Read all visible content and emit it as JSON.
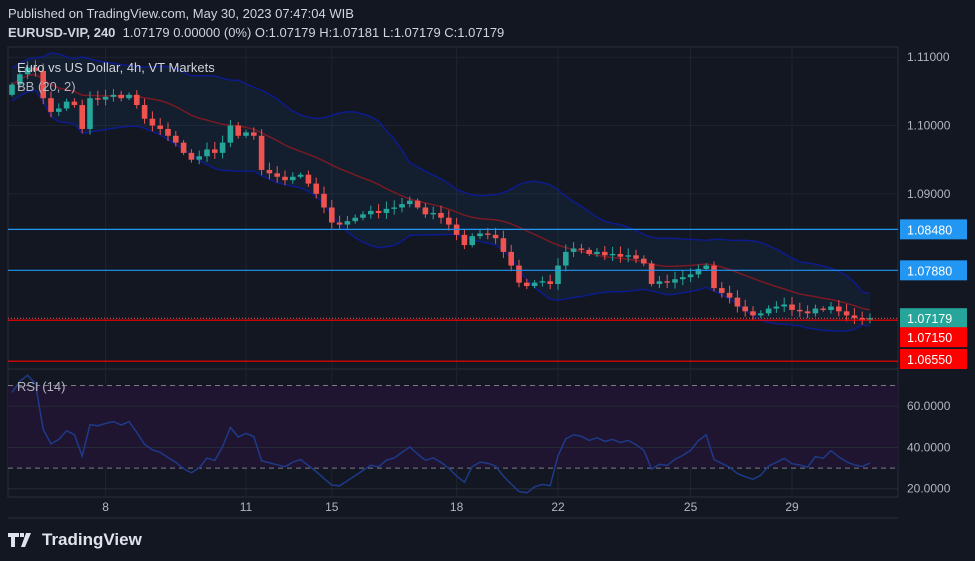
{
  "header": {
    "published": "Published on TradingView.com, May 30, 2023 07:47:04 WIB",
    "symbol": "EURUSD-VIP, 240",
    "quote": "1.07179 0.00000 (0%) O:1.07179 H:1.07181 L:1.07179 C:1.07179"
  },
  "logo_text": "TradingView",
  "colors": {
    "background": "#131722",
    "up": "#26a69a",
    "down": "#ef5350",
    "bb_band": "#0d1b8c",
    "bb_basis": "#7a1a24",
    "support_blue": "#2196f3",
    "support_red": "#f23645",
    "rsi_line": "#1e3a8a",
    "rsi_zone": "#1f1530"
  },
  "chart_data": [
    {
      "type": "candlestick",
      "title": "Euro vs US Dollar, 4h, VT Markets",
      "indicator_label": "BB (20, 2)",
      "x_tick_labels": [
        "8",
        "11",
        "15",
        "18",
        "22",
        "25",
        "29"
      ],
      "x_tick_index": [
        12,
        30,
        41,
        57,
        70,
        87,
        100
      ],
      "y_ticks": [
        "1.11000",
        "1.10000",
        "1.09000"
      ],
      "y_tick_values": [
        1.11,
        1.1,
        1.09
      ],
      "ylim": [
        1.0645,
        1.1115
      ],
      "closes": [
        1.106,
        1.1075,
        1.1085,
        1.108,
        1.104,
        1.102,
        1.1025,
        1.1035,
        1.103,
        1.0995,
        1.104,
        1.1038,
        1.1042,
        1.1045,
        1.104,
        1.1045,
        1.103,
        1.101,
        1.1,
        1.0995,
        1.0985,
        1.0975,
        1.096,
        1.095,
        1.0955,
        1.0965,
        1.096,
        1.0975,
        1.1,
        1.0985,
        1.099,
        1.0985,
        1.0935,
        1.093,
        1.0925,
        1.092,
        1.0925,
        1.0928,
        1.0915,
        1.09,
        1.088,
        1.0858,
        1.0855,
        1.086,
        1.0865,
        1.087,
        1.0875,
        1.0872,
        1.0878,
        1.088,
        1.0885,
        1.089,
        1.088,
        1.087,
        1.0872,
        1.0865,
        1.0855,
        1.084,
        1.0825,
        1.0838,
        1.0842,
        1.084,
        1.0835,
        1.0815,
        1.0795,
        1.077,
        1.0765,
        1.077,
        1.0772,
        1.0768,
        1.0795,
        1.0815,
        1.082,
        1.0818,
        1.0812,
        1.0815,
        1.081,
        1.0812,
        1.0808,
        1.081,
        1.0805,
        1.0798,
        1.0768,
        1.0772,
        1.077,
        1.0775,
        1.0778,
        1.0782,
        1.079,
        1.0795,
        1.0762,
        1.0755,
        1.0748,
        1.0735,
        1.0728,
        1.0722,
        1.0725,
        1.0732,
        1.0735,
        1.0738,
        1.073,
        1.0728,
        1.0725,
        1.0732,
        1.073,
        1.0735,
        1.0728,
        1.0722,
        1.0718,
        1.0716,
        1.07179
      ],
      "horizontal_levels": [
        {
          "value": 1.0848,
          "label": "1.08480",
          "color": "#2196f3"
        },
        {
          "value": 1.0788,
          "label": "1.07880",
          "color": "#2196f3"
        },
        {
          "value": 1.0715,
          "label": "1.07150",
          "color": "#ff0000"
        },
        {
          "value": 1.0655,
          "label": "1.06550",
          "color": "#ff0000"
        }
      ],
      "last_price": {
        "value": 1.07179,
        "label": "1.07179",
        "color": "#26a69a"
      }
    },
    {
      "type": "line",
      "title": "RSI (14)",
      "y_ticks": [
        "60.0000",
        "40.0000",
        "20.0000"
      ],
      "y_tick_values": [
        60,
        40,
        20
      ],
      "bands": [
        70,
        30
      ],
      "ylim": [
        16,
        78
      ]
    }
  ]
}
